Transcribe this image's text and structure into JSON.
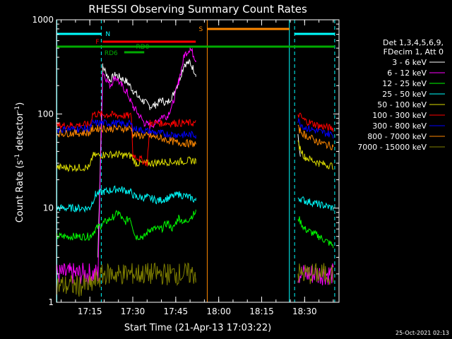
{
  "chart_data": {
    "type": "line",
    "title": "RHESSI Observing Summary Count Rates",
    "xlabel": "Start Time (21-Apr-13 17:03:22)",
    "ylabel_main": "Count Rate (s",
    "ylabel_sup": "-1",
    "ylabel_rest": " detector",
    "ylabel_end": ")",
    "xlim": [
      "17:03:22",
      "18:42:00"
    ],
    "ylim": [
      1,
      1000
    ],
    "yscale": "log",
    "x_ticks": [
      "17:15",
      "17:30",
      "17:45",
      "18:00",
      "18:15",
      "18:30"
    ],
    "y_ticks": [
      {
        "value": 1,
        "label": "1"
      },
      {
        "value": 10,
        "label": "10"
      },
      {
        "value": 100,
        "label": "100"
      },
      {
        "value": 1000,
        "label": "1000"
      }
    ],
    "legend_header": [
      "Det 1,3,4,5,6,9,",
      "FDecim 1, Att 0"
    ],
    "series": [
      {
        "name": "3 - 6 keV",
        "color": "#ffffff",
        "points": [
          [
            "17:17:50",
            3
          ],
          [
            "17:19:30",
            320
          ],
          [
            "17:22:00",
            230
          ],
          [
            "17:24:00",
            260
          ],
          [
            "17:26:00",
            240
          ],
          [
            "17:28:00",
            220
          ],
          [
            "17:30:00",
            180
          ],
          [
            "17:32:00",
            150
          ],
          [
            "17:34:00",
            135
          ],
          [
            "17:36:00",
            120
          ],
          [
            "17:38:00",
            125
          ],
          [
            "17:40:00",
            140
          ],
          [
            "17:42:00",
            130
          ],
          [
            "17:44:00",
            160
          ],
          [
            "17:46:00",
            220
          ],
          [
            "17:48:00",
            340
          ],
          [
            "17:50:00",
            350
          ],
          [
            "17:52:00",
            270
          ],
          [
            "18:27:40",
            60
          ],
          [
            "18:28:30",
            35
          ]
        ]
      },
      {
        "name": "6 - 12 keV",
        "color": "#ff00ff",
        "points": [
          [
            "17:03:30",
            2
          ],
          [
            "17:17:50",
            2
          ],
          [
            "17:19:30",
            280
          ],
          [
            "17:22:00",
            200
          ],
          [
            "17:24:00",
            250
          ],
          [
            "17:26:00",
            200
          ],
          [
            "17:28:00",
            170
          ],
          [
            "17:30:00",
            120
          ],
          [
            "17:32:00",
            100
          ],
          [
            "17:34:00",
            80
          ],
          [
            "17:36:00",
            75
          ],
          [
            "17:38:00",
            80
          ],
          [
            "17:40:00",
            95
          ],
          [
            "17:42:00",
            95
          ],
          [
            "17:44:00",
            130
          ],
          [
            "17:46:00",
            220
          ],
          [
            "17:48:00",
            420
          ],
          [
            "17:50:00",
            500
          ],
          [
            "17:52:00",
            380
          ],
          [
            "18:27:40",
            2
          ],
          [
            "18:40:00",
            2
          ]
        ]
      },
      {
        "name": "12 - 25 keV",
        "color": "#00ff00",
        "points": [
          [
            "17:03:30",
            5
          ],
          [
            "17:15:00",
            5
          ],
          [
            "17:17:00",
            6
          ],
          [
            "17:20:00",
            7
          ],
          [
            "17:23:00",
            8
          ],
          [
            "17:25:00",
            9
          ],
          [
            "17:27:00",
            7
          ],
          [
            "17:29:00",
            8
          ],
          [
            "17:31:00",
            5
          ],
          [
            "17:34:00",
            5
          ],
          [
            "17:36:00",
            6
          ],
          [
            "17:38:00",
            6
          ],
          [
            "17:40:00",
            6
          ],
          [
            "17:42:00",
            7
          ],
          [
            "17:44:00",
            6
          ],
          [
            "17:46:00",
            8
          ],
          [
            "17:48:00",
            7
          ],
          [
            "17:52:00",
            9
          ],
          [
            "18:27:40",
            8
          ],
          [
            "18:30:00",
            6
          ],
          [
            "18:35:00",
            5
          ],
          [
            "18:40:00",
            4
          ]
        ]
      },
      {
        "name": "25 - 50 keV",
        "color": "#00ffff",
        "points": [
          [
            "17:03:30",
            10
          ],
          [
            "17:15:00",
            10
          ],
          [
            "17:17:00",
            14
          ],
          [
            "17:20:00",
            15
          ],
          [
            "17:25:00",
            16
          ],
          [
            "17:29:00",
            15
          ],
          [
            "17:31:00",
            13
          ],
          [
            "17:35:00",
            13
          ],
          [
            "17:39:00",
            12
          ],
          [
            "17:43:00",
            13
          ],
          [
            "17:46:00",
            14
          ],
          [
            "17:50:00",
            13
          ],
          [
            "17:52:00",
            12
          ],
          [
            "18:27:40",
            13
          ],
          [
            "18:30:00",
            12
          ],
          [
            "18:35:00",
            11
          ],
          [
            "18:40:00",
            10
          ]
        ]
      },
      {
        "name": "50 - 100 keV",
        "color": "#dddd00",
        "points": [
          [
            "17:03:30",
            27
          ],
          [
            "17:15:00",
            27
          ],
          [
            "17:16:00",
            36
          ],
          [
            "17:20:00",
            37
          ],
          [
            "17:25:00",
            37
          ],
          [
            "17:28:00",
            36
          ],
          [
            "17:29:30",
            36
          ],
          [
            "17:31:00",
            30
          ],
          [
            "17:37:00",
            30
          ],
          [
            "17:40:00",
            31
          ],
          [
            "17:45:00",
            31
          ],
          [
            "17:50:00",
            32
          ],
          [
            "17:52:00",
            32
          ],
          [
            "18:27:40",
            48
          ],
          [
            "18:30:00",
            35
          ],
          [
            "18:35:00",
            30
          ],
          [
            "18:40:00",
            28
          ]
        ]
      },
      {
        "name": "100 - 300 keV",
        "color": "#ff0000",
        "points": [
          [
            "17:03:30",
            75
          ],
          [
            "17:15:00",
            77
          ],
          [
            "17:16:00",
            100
          ],
          [
            "17:22:00",
            98
          ],
          [
            "17:29:30",
            95
          ],
          [
            "17:30:00",
            37
          ],
          [
            "17:35:00",
            30
          ],
          [
            "17:36:00",
            80
          ],
          [
            "17:40:00",
            80
          ],
          [
            "17:45:00",
            80
          ],
          [
            "17:52:00",
            80
          ],
          [
            "18:27:40",
            100
          ],
          [
            "18:30:00",
            85
          ],
          [
            "18:35:00",
            75
          ],
          [
            "18:40:00",
            70
          ]
        ]
      },
      {
        "name": "300 - 800 keV",
        "color": "#0000ff",
        "points": [
          [
            "17:03:30",
            68
          ],
          [
            "17:15:00",
            70
          ],
          [
            "17:16:00",
            80
          ],
          [
            "17:22:00",
            80
          ],
          [
            "17:29:30",
            78
          ],
          [
            "17:30:00",
            70
          ],
          [
            "17:36:00",
            65
          ],
          [
            "17:40:00",
            62
          ],
          [
            "17:45:00",
            60
          ],
          [
            "17:52:00",
            60
          ],
          [
            "18:27:40",
            85
          ],
          [
            "18:30:00",
            72
          ],
          [
            "18:35:00",
            65
          ],
          [
            "18:40:00",
            60
          ]
        ]
      },
      {
        "name": "800 - 7000 keV",
        "color": "#ff8800",
        "points": [
          [
            "17:03:30",
            62
          ],
          [
            "17:15:00",
            63
          ],
          [
            "17:16:00",
            70
          ],
          [
            "17:22:00",
            70
          ],
          [
            "17:29:30",
            70
          ],
          [
            "17:30:00",
            60
          ],
          [
            "17:36:00",
            58
          ],
          [
            "17:40:00",
            55
          ],
          [
            "17:45:00",
            50
          ],
          [
            "17:52:00",
            48
          ],
          [
            "18:27:40",
            70
          ],
          [
            "18:30:00",
            60
          ],
          [
            "18:35:00",
            50
          ],
          [
            "18:40:00",
            45
          ]
        ]
      },
      {
        "name": "7000 - 15000 keV",
        "color": "#808000",
        "points": [
          [
            "17:03:30",
            1.5
          ],
          [
            "17:15:00",
            1.5
          ],
          [
            "17:20:00",
            2
          ],
          [
            "17:25:00",
            2
          ],
          [
            "17:30:00",
            2
          ],
          [
            "17:35:00",
            2
          ],
          [
            "17:40:00",
            2
          ],
          [
            "17:45:00",
            2
          ],
          [
            "17:52:00",
            2
          ],
          [
            "18:27:40",
            2
          ],
          [
            "18:40:00",
            2
          ]
        ]
      }
    ],
    "state_bars": [
      {
        "label": "N",
        "color": "#00ffff",
        "segments": [
          [
            "17:03:30",
            "17:19:00"
          ],
          [
            "18:26:30",
            "18:40:30"
          ]
        ]
      },
      {
        "label": "F",
        "color": "#ff0000",
        "segments": [
          [
            "17:19:30",
            "17:52:00"
          ]
        ]
      },
      {
        "label": "S",
        "color": "#ff8800",
        "segments": [
          [
            "17:56:00",
            "18:24:40"
          ]
        ]
      },
      {
        "label": "RD0",
        "color": "#00aa00",
        "segments": [
          [
            "17:03:30",
            "18:40:30"
          ]
        ]
      },
      {
        "label": "RD6",
        "color": "#00aa00",
        "segments": [
          [
            "17:27:00",
            "17:34:00"
          ]
        ]
      }
    ],
    "vertical_lines": [
      {
        "time": "17:03:30",
        "color": "#00ffff",
        "style": "solid"
      },
      {
        "time": "17:19:00",
        "color": "#00ffff",
        "style": "dashed"
      },
      {
        "time": "17:56:00",
        "color": "#ff8800",
        "style": "solid"
      },
      {
        "time": "18:24:40",
        "color": "#00ffff",
        "style": "solid"
      },
      {
        "time": "18:26:30",
        "color": "#00ffff",
        "style": "dashed"
      },
      {
        "time": "18:40:30",
        "color": "#00ffff",
        "style": "dashed"
      }
    ]
  },
  "footer_timestamp": "25-Oct-2021 02:13"
}
